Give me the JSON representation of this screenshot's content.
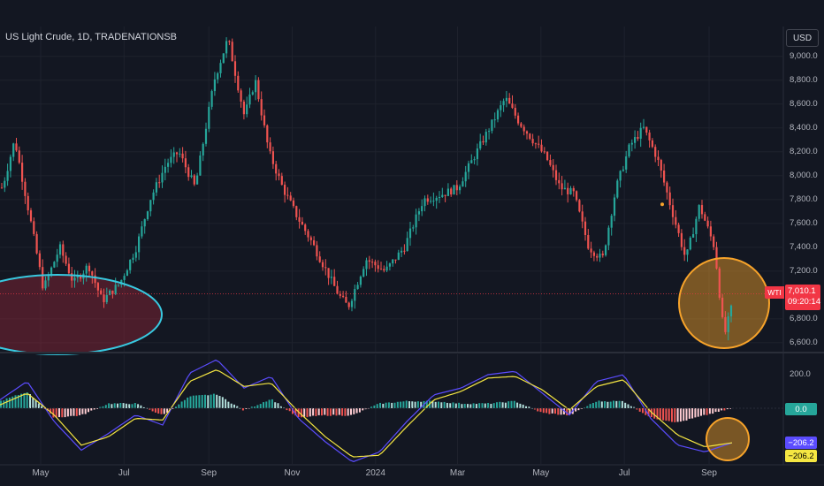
{
  "chart_title": "US Light Crude, 1D, TRADENATIONSB",
  "currency_label": "USD",
  "symbol_label": "WTI",
  "current_price": "7,010.1",
  "countdown": "09:20:14",
  "indicator_zero": "0.0",
  "indicator_value_1": "−206.2",
  "indicator_value_2": "−206.2",
  "indicator_axis_label": "200.0",
  "colors": {
    "background": "#131722",
    "up": "#26a69a",
    "down": "#ef5350",
    "macd_line": "#5b4cff",
    "signal_line": "#f5e642",
    "highlight_orange": "#f7a32a",
    "highlight_cyan": "#38c9e0",
    "price_tag": "#f23645"
  },
  "chart_data": [
    {
      "type": "candlestick",
      "title": "US Light Crude, 1D, TRADENATIONSB",
      "x_tick_labels": [
        "May",
        "Jul",
        "Sep",
        "Nov",
        "2024",
        "Mar",
        "May",
        "Jul",
        "Sep"
      ],
      "y_tick_labels": [
        "9,000.0",
        "8,800.0",
        "8,600.0",
        "8,400.0",
        "8,200.0",
        "8,000.0",
        "7,800.0",
        "7,600.0",
        "7,400.0",
        "7,200.0",
        "6,800.0",
        "6,600.0"
      ],
      "ylim": [
        6540,
        9250
      ],
      "close_path": {
        "x": [
          "Apr 3",
          "Apr 12",
          "Apr 24",
          "May 3",
          "May 15",
          "May 25",
          "Jun 5",
          "Jun 15",
          "Jun 28",
          "Jul 10",
          "Jul 20",
          "Aug 1",
          "Aug 10",
          "Aug 22",
          "Sep 5",
          "Sep 15",
          "Sep 27",
          "Oct 5",
          "Oct 15",
          "Oct 25",
          "Nov 5",
          "Nov 15",
          "Dec 5",
          "Dec 12",
          "Dec 25",
          "Jan 8",
          "Jan 22",
          "Feb 5",
          "Feb 20",
          "Mar 1",
          "Mar 15",
          "Apr 5",
          "Apr 15",
          "Apr 25",
          "May 5",
          "May 15",
          "May 25",
          "Jun 5",
          "Jun 15",
          "Jun 25",
          "Jul 5",
          "Jul 15",
          "Jul 25",
          "Aug 5",
          "Aug 15",
          "Aug 25",
          "Sep 5",
          "Sep 12",
          "Sep 20"
        ],
        "y": [
          7900,
          8300,
          7600,
          7050,
          7400,
          7100,
          7250,
          6950,
          7100,
          7400,
          7800,
          8100,
          8200,
          7900,
          8800,
          9150,
          8500,
          8800,
          8200,
          7900,
          7650,
          7450,
          7000,
          6900,
          7300,
          7200,
          7400,
          7800,
          7850,
          7900,
          8200,
          8650,
          8450,
          8300,
          8150,
          7900,
          7850,
          7400,
          7300,
          7900,
          8250,
          8400,
          8150,
          7700,
          7300,
          7750,
          7400,
          6650,
          7010
        ]
      },
      "annotations": [
        "cyan ellipse around April–June lows",
        "orange circle around September low"
      ]
    },
    {
      "type": "line",
      "title": "",
      "x_tick_labels": [
        "May",
        "Jul",
        "Sep",
        "Nov",
        "2024",
        "Mar",
        "May",
        "Jul",
        "Sep"
      ],
      "y_tick_labels": [
        "200.0",
        "0.0"
      ],
      "series": [
        {
          "values": [
            50,
            160,
            -80,
            -250,
            -150,
            -40,
            -100,
            210,
            290,
            120,
            190,
            -60,
            -200,
            -320,
            -260,
            -80,
            80,
            120,
            200,
            220,
            90,
            -40,
            160,
            200,
            -60,
            -220,
            -260,
            -206
          ]
        },
        {
          "values": [
            20,
            90,
            -40,
            -220,
            -170,
            -60,
            -70,
            160,
            230,
            130,
            150,
            -20,
            -170,
            -290,
            -280,
            -110,
            50,
            100,
            180,
            190,
            110,
            -10,
            130,
            170,
            -20,
            -160,
            -230,
            -206
          ]
        }
      ],
      "annotations": [
        "orange circle around latest values"
      ]
    }
  ]
}
